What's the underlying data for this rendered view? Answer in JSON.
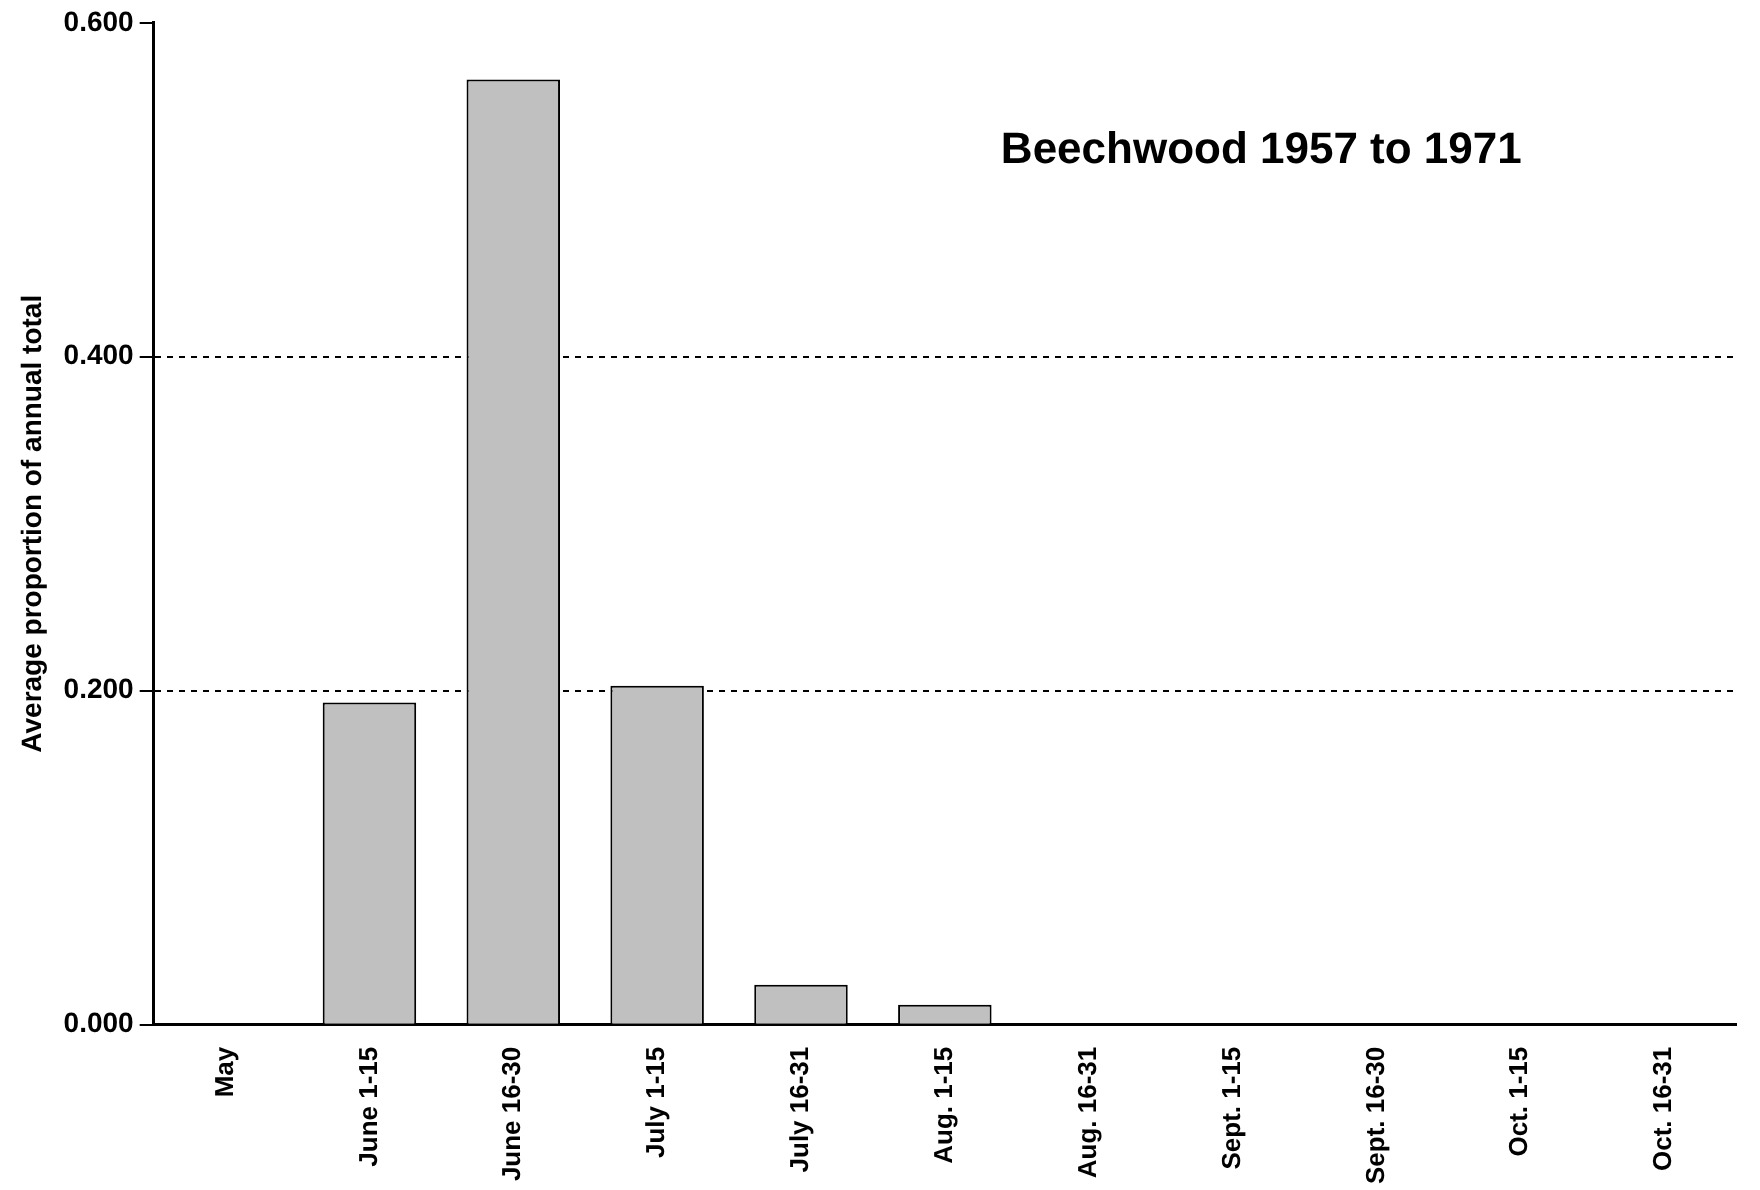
{
  "chart_data": {
    "type": "bar",
    "title": "Beechwood 1957 to 1971",
    "ylabel": "Average proportion of annual total",
    "categories": [
      "May",
      "June 1-15",
      "June 16-30",
      "July 1-15",
      "July 16-31",
      "Aug. 1-15",
      "Aug. 16-31",
      "Sept. 1-15",
      "Sept. 16-30",
      "Oct. 1-15",
      "Oct. 16-31"
    ],
    "values": [
      0,
      0.193,
      0.566,
      0.203,
      0.024,
      0.012,
      0,
      0,
      0,
      0,
      0
    ],
    "color": "#c0c0c0",
    "ylim": [
      0,
      0.6
    ],
    "yticks": [
      {
        "value": 0,
        "label": "0.000"
      },
      {
        "value": 0.2,
        "label": "0.200"
      },
      {
        "value": 0.4,
        "label": "0.400"
      },
      {
        "value": 0.6,
        "label": "0.600"
      }
    ],
    "grid": "y",
    "line_style": "dashed"
  }
}
